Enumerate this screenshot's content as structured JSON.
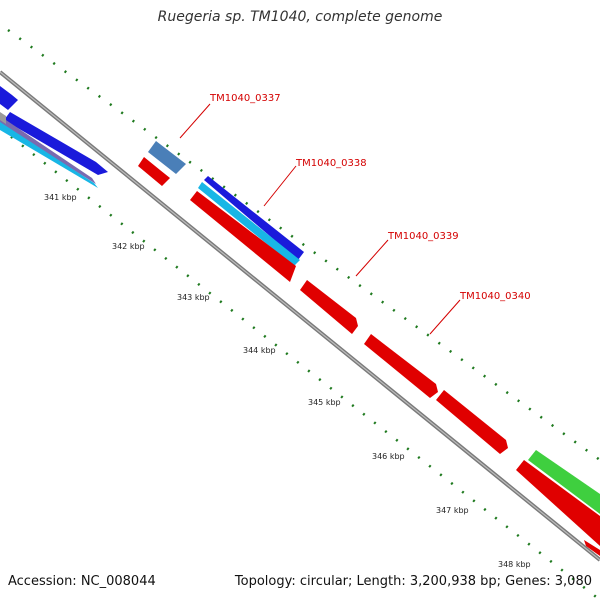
{
  "title": "Ruegeria sp. TM1040, complete genome",
  "accession": "Accession: NC_008044",
  "summary": "Topology: circular; Length: 3,200,938 bp; Genes: 3,080",
  "kbp_labels": [
    "341 kbp",
    "342 kbp",
    "343 kbp",
    "344 kbp",
    "345 kbp",
    "346 kbp",
    "347 kbp",
    "348 kbp"
  ],
  "gene_labels": [
    "TM1040_0337",
    "TM1040_0338",
    "TM1040_0339",
    "TM1040_0340"
  ],
  "colors": {
    "backbone": "#8a8a8a",
    "forward_cds": "#e00000",
    "blue_track": "#1a1adb",
    "cyan_track": "#18b6e6",
    "steelblue_track": "#4a7fb8",
    "green_track": "#3fcf3f",
    "tick": "#1f7a1f",
    "label_text": "#d40000"
  }
}
